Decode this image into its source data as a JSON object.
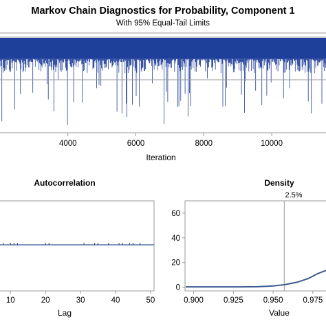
{
  "title": "Markov Chain Diagnostics for Probability, Component 1",
  "subtitle": "With 95% Equal-Tail Limits",
  "colors": {
    "trace": "#1f3f9a",
    "line": "#3b5b8f",
    "frame": "#999999",
    "ref": "#999999"
  },
  "chart_data": [
    {
      "type": "line",
      "title": "",
      "xlabel": "Iteration",
      "ylabel": "",
      "xlim": [
        2000,
        11600
      ],
      "ylim": [
        0.0,
        1.0
      ],
      "x_ticks": [
        "4000",
        "6000",
        "8000",
        "10000"
      ],
      "x_tick_values": [
        4000,
        6000,
        8000,
        10000
      ],
      "series": [
        {
          "values_summary": "dense trace near upper bound ~0.99 with downward spikes to ~0.45"
        }
      ]
    },
    {
      "type": "bar",
      "title": "Autocorrelation",
      "xlabel": "Lag",
      "x_ticks": [
        "10",
        "20",
        "30",
        "40",
        "50"
      ],
      "x_tick_values": [
        10,
        20,
        30,
        40,
        50
      ],
      "xlim": [
        7,
        51
      ],
      "spike_lags": [
        8,
        10,
        11,
        12,
        20,
        21,
        31,
        34,
        35,
        38,
        41,
        42,
        44,
        45,
        47
      ],
      "baseline": 0
    },
    {
      "type": "line",
      "title": "Density",
      "xlabel": "Value",
      "x_ticks": [
        "0.900",
        "0.925",
        "0.950",
        "0.975"
      ],
      "x_tick_values": [
        0.9,
        0.925,
        0.95,
        0.975
      ],
      "y_ticks": [
        "0",
        "20",
        "40",
        "60"
      ],
      "y_tick_values": [
        0,
        20,
        40,
        60
      ],
      "xlim": [
        0.895,
        0.985
      ],
      "ylim": [
        -3,
        70
      ],
      "ref_label": "2.5%",
      "ref_value": 0.957,
      "x": [
        0.895,
        0.91,
        0.93,
        0.94,
        0.95,
        0.957,
        0.965,
        0.972,
        0.978,
        0.984
      ],
      "y": [
        0.3,
        0.3,
        0.3,
        0.4,
        1.0,
        2.0,
        4.0,
        7.0,
        11.0,
        14.0
      ]
    }
  ]
}
